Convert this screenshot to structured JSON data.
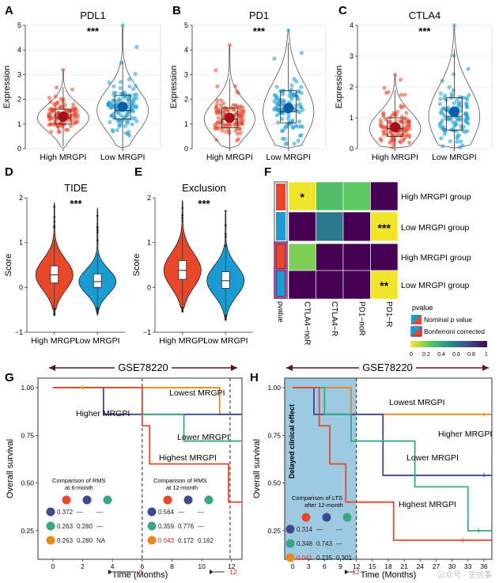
{
  "colors": {
    "high": "#e8472a",
    "low": "#1a9bd2",
    "dark_high": "#a5111b",
    "dark_low": "#0b5fa6",
    "green": "#3aa687",
    "navy": "#3b4a8c",
    "orange": "#ea8a1e",
    "shade": "#9ecae1",
    "red_text": "#e0262b"
  },
  "chart_data": [
    {
      "id": "A",
      "type": "violin",
      "title": "PDL1",
      "ylabel": "Expression",
      "categories": [
        "High MRGPI",
        "Low MRGPI"
      ],
      "ylim": [
        0,
        5
      ],
      "yticks": [
        "0",
        "1",
        "2",
        "3",
        "4",
        "5"
      ],
      "means": [
        1.3,
        1.7
      ],
      "medians": [
        1.25,
        1.55
      ],
      "q1": [
        1.0,
        1.2
      ],
      "q3": [
        1.6,
        2.15
      ],
      "max": [
        3.2,
        5.0
      ],
      "significance": "***"
    },
    {
      "id": "B",
      "type": "violin",
      "title": "PD1",
      "ylabel": "Expression",
      "categories": [
        "High MRGPI",
        "Low MRGPI"
      ],
      "ylim": [
        0,
        5
      ],
      "yticks": [
        "0",
        "1",
        "2",
        "3",
        "4",
        "5"
      ],
      "means": [
        1.25,
        1.65
      ],
      "medians": [
        1.2,
        1.5
      ],
      "q1": [
        0.85,
        1.05
      ],
      "q3": [
        1.65,
        2.35
      ],
      "max": [
        4.2,
        4.8
      ],
      "significance": "***"
    },
    {
      "id": "C",
      "type": "violin",
      "title": "CTLA4",
      "ylabel": "Expression",
      "categories": [
        "High MRGPI",
        "Low MRGPI"
      ],
      "ylim": [
        0,
        4
      ],
      "yticks": [
        "0",
        "1",
        "2",
        "3",
        "4"
      ],
      "means": [
        0.7,
        1.2
      ],
      "medians": [
        0.65,
        1.05
      ],
      "q1": [
        0.4,
        0.6
      ],
      "q3": [
        1.0,
        1.65
      ],
      "max": [
        2.4,
        4.0
      ],
      "significance": "***"
    },
    {
      "id": "D",
      "type": "violin",
      "title": "TIDE",
      "ylabel": "Score",
      "categories": [
        "High MRGPI",
        "Low MRGPI"
      ],
      "ylim": [
        -1,
        2
      ],
      "yticks": [
        "−1",
        "0",
        "1",
        "2"
      ],
      "medians": [
        0.28,
        0.13
      ],
      "q1": [
        0.1,
        0.0
      ],
      "q3": [
        0.48,
        0.3
      ],
      "min": [
        -0.55,
        -0.62
      ],
      "max": [
        1.9,
        1.78
      ],
      "significance": "***"
    },
    {
      "id": "E",
      "type": "violin",
      "title": "Exclusion",
      "ylabel": "Score",
      "categories": [
        "High MRGPI",
        "Low MRGPI"
      ],
      "ylim": [
        -1,
        2
      ],
      "yticks": [
        "−1",
        "0",
        "1",
        "2"
      ],
      "medians": [
        0.38,
        0.15
      ],
      "q1": [
        0.18,
        -0.02
      ],
      "q3": [
        0.6,
        0.35
      ],
      "min": [
        -0.5,
        -0.7
      ],
      "max": [
        1.95,
        1.7
      ],
      "significance": "***"
    },
    {
      "id": "F",
      "type": "heatmap",
      "columns": [
        "CTLA4−noR",
        "CTLA4−R",
        "PD1−noR",
        "PD1−R"
      ],
      "rows": [
        "High MRGPI group",
        "Low MRGPI group",
        "High MRGPI group",
        "Low MRGPI group"
      ],
      "values": [
        [
          0.02,
          0.3,
          0.25,
          1.0
        ],
        [
          1.0,
          0.6,
          1.0,
          0.02
        ],
        [
          0.2,
          1.0,
          1.0,
          1.0
        ],
        [
          1.0,
          1.0,
          1.0,
          0.02
        ]
      ],
      "stars": [
        [
          "*",
          "",
          "",
          ""
        ],
        [
          "",
          "",
          "",
          "***"
        ],
        [
          "",
          "",
          "",
          ""
        ],
        [
          "",
          "",
          "",
          "**"
        ]
      ],
      "side_label": "pvalue",
      "legend_title": "pvalue",
      "legend_items": [
        "Nominal p value",
        "Bonferroni corrected"
      ],
      "colorbar_ticks": [
        "0",
        "0.2",
        "0.4",
        "0.6",
        "0.8",
        "1"
      ]
    },
    {
      "id": "G",
      "type": "line",
      "dataset": "GSE78220",
      "xlabel": "Time (Months)",
      "ylabel": "Overall survival",
      "xticks": [
        "0",
        "2",
        "4",
        "6",
        "8",
        "10",
        "12"
      ],
      "yticks": [
        "0.25",
        "0.50",
        "0.75",
        "1.00"
      ],
      "series": [
        {
          "name": "Lowest MRGPI",
          "x": [
            0,
            11.2,
            12.7
          ],
          "y": [
            1.0,
            0.86,
            0.86
          ]
        },
        {
          "name": "Higher MRGPI",
          "x": [
            0,
            3.4,
            6.0
          ],
          "y": [
            1.0,
            0.86,
            0.86
          ]
        },
        {
          "name": "Lower MRGPI",
          "x": [
            0,
            6.0,
            8.8,
            12.7
          ],
          "y": [
            1.0,
            0.86,
            0.72,
            0.72
          ]
        },
        {
          "name": "Highest MRGPI",
          "x": [
            0,
            6.0,
            6.5,
            11.8,
            12.7
          ],
          "y": [
            1.0,
            0.8,
            0.6,
            0.4,
            0.4
          ]
        }
      ],
      "text_left": [
        "Comparison of RMS",
        "at 6-month"
      ],
      "text_right": [
        "Comparison of RMS",
        "at 12-month"
      ],
      "rows_left": [
        [
          "0.372",
          "—",
          "—"
        ],
        [
          "0.263",
          "0.280",
          "—"
        ],
        [
          "0.263",
          "0.280",
          "NA"
        ]
      ],
      "rows_right": [
        [
          "0.564",
          "—",
          "—"
        ],
        [
          "0.359",
          "0.776",
          "—"
        ],
        [
          "0.043",
          "0.172",
          "0.162"
        ]
      ],
      "marker6": "6",
      "marker12": "12"
    },
    {
      "id": "H",
      "type": "line",
      "dataset": "GSE78220",
      "xlabel": "Time (Months)",
      "ylabel": "Overall survival",
      "xticks": [
        "0",
        "3",
        "6",
        "9",
        "12",
        "15",
        "18",
        "21",
        "24",
        "27",
        "30",
        "33",
        "36"
      ],
      "yticks": [
        "0.25",
        "0.50",
        "0.75",
        "1.00"
      ],
      "shade_label": "Delayed clinical effect",
      "series": [
        {
          "name": "Lowest MRGPI",
          "x": [
            0,
            11,
            36
          ],
          "y": [
            1.0,
            0.86,
            0.86
          ]
        },
        {
          "name": "Higher MRGPI",
          "x": [
            0,
            4,
            11,
            17,
            36
          ],
          "y": [
            1.0,
            0.86,
            0.86,
            0.54,
            0.54
          ]
        },
        {
          "name": "Lower MRGPI",
          "x": [
            0,
            6,
            11,
            16,
            23,
            33,
            35
          ],
          "y": [
            1.0,
            0.86,
            0.72,
            0.72,
            0.48,
            0.25,
            0.25
          ]
        },
        {
          "name": "Highest MRGPI",
          "x": [
            0,
            5,
            7,
            10,
            19,
            32
          ],
          "y": [
            1.0,
            0.8,
            0.6,
            0.4,
            0.2,
            0.2
          ]
        }
      ],
      "text_left": [
        "Comparison of LTS",
        "after 12-month"
      ],
      "rows_left": [
        [
          "0.314",
          "—",
          "—"
        ],
        [
          "0.348",
          "0.743",
          "—"
        ],
        [
          "0.041",
          "0.235",
          "0.301"
        ]
      ],
      "marker12": "12"
    }
  ],
  "panels": {
    "A": "A",
    "B": "B",
    "C": "C",
    "D": "D",
    "E": "E",
    "F": "F",
    "G": "G",
    "H": "H"
  },
  "watermark": "公众号 · 生信事"
}
